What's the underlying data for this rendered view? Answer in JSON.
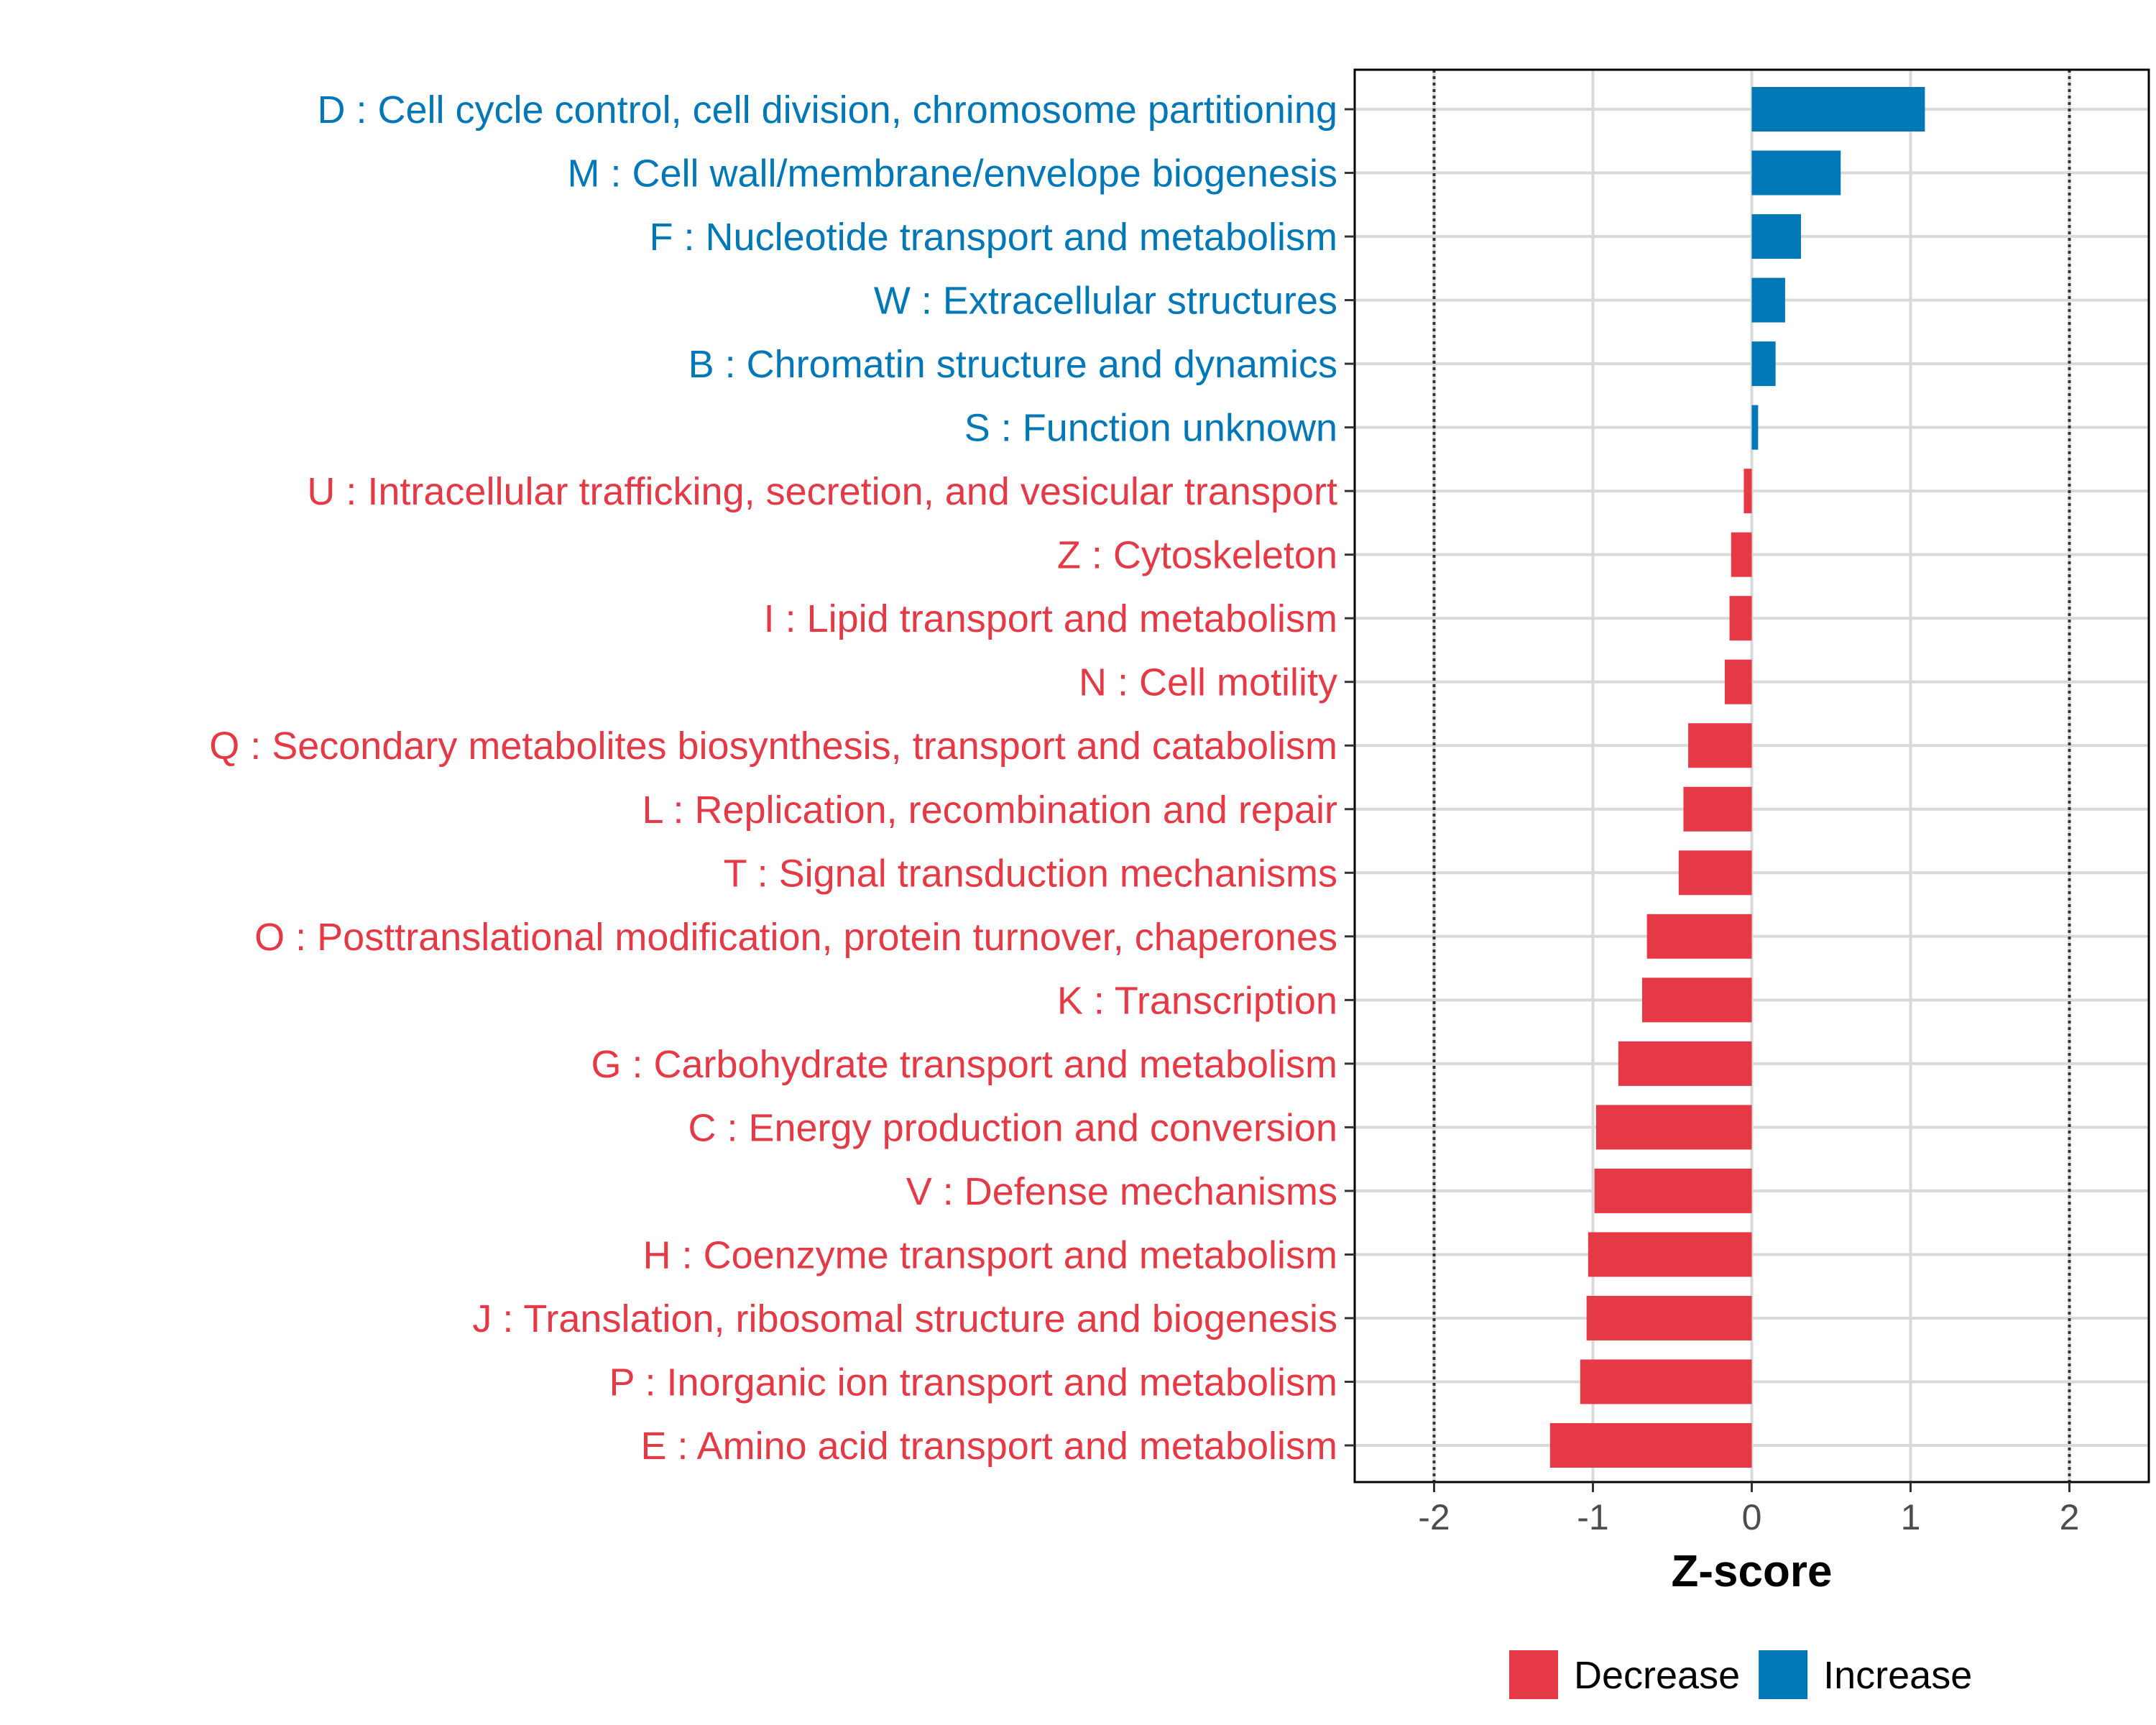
{
  "chart_data": {
    "type": "bar",
    "orientation": "horizontal",
    "xlabel": "Z-score",
    "xlim": [
      -2.5,
      2.5
    ],
    "xticks": [
      -2,
      -1,
      0,
      1,
      2
    ],
    "xtick_labels": [
      "-2",
      "-1",
      "0",
      "1",
      "2"
    ],
    "reference_lines": [
      -2,
      2
    ],
    "grid": true,
    "legend": {
      "position": "bottom",
      "entries": [
        {
          "name": "Decrease",
          "color": "#e63946"
        },
        {
          "name": "Increase",
          "color": "#0077b6"
        }
      ]
    },
    "colors": {
      "Decrease": "#e63946",
      "Increase": "#0077b6"
    },
    "categories": [
      "D : Cell cycle control, cell division, chromosome partitioning",
      "M : Cell wall/membrane/envelope biogenesis",
      "F : Nucleotide transport and metabolism",
      "W : Extracellular structures",
      "B : Chromatin structure and dynamics",
      "S : Function unknown",
      "U : Intracellular trafficking, secretion, and vesicular transport",
      "Z : Cytoskeleton",
      "I : Lipid transport and metabolism",
      "N : Cell motility",
      "Q : Secondary metabolites biosynthesis, transport and catabolism",
      "L : Replication, recombination and repair",
      "T : Signal transduction mechanisms",
      "O : Posttranslational modification, protein turnover, chaperones",
      "K : Transcription",
      "G : Carbohydrate transport and metabolism",
      "C : Energy production and conversion",
      "V : Defense mechanisms",
      "H : Coenzyme transport and metabolism",
      "J : Translation, ribosomal structure and biogenesis",
      "P : Inorganic ion transport and metabolism",
      "E : Amino acid transport and metabolism"
    ],
    "values": [
      1.09,
      0.56,
      0.31,
      0.21,
      0.15,
      0.04,
      -0.05,
      -0.13,
      -0.14,
      -0.17,
      -0.4,
      -0.43,
      -0.46,
      -0.66,
      -0.69,
      -0.84,
      -0.98,
      -0.99,
      -1.03,
      -1.04,
      -1.08,
      -1.27
    ],
    "groups": [
      "Increase",
      "Increase",
      "Increase",
      "Increase",
      "Increase",
      "Increase",
      "Decrease",
      "Decrease",
      "Decrease",
      "Decrease",
      "Decrease",
      "Decrease",
      "Decrease",
      "Decrease",
      "Decrease",
      "Decrease",
      "Decrease",
      "Decrease",
      "Decrease",
      "Decrease",
      "Decrease",
      "Decrease"
    ]
  }
}
